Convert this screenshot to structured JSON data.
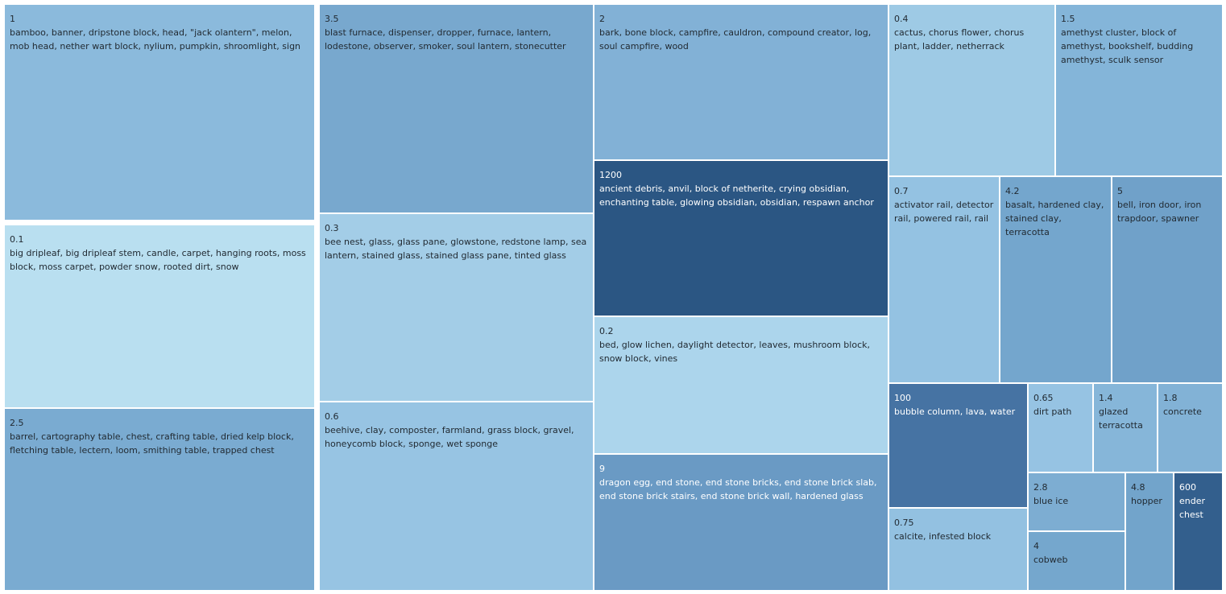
{
  "chart_data": {
    "type": "treemap",
    "title": "",
    "items": [
      {
        "value": "1",
        "label": "bamboo, banner, dripstone block, head, \"jack olantern\", melon, mob head, nether wart block, nylium, pumpkin, shroomlight, sign",
        "color": "#8bbadc"
      },
      {
        "value": "0.1",
        "label": "big dripleaf, big dripleaf stem, candle, carpet, hanging roots, moss block, moss carpet, powder snow, rooted dirt, snow",
        "color": "#b9dff0"
      },
      {
        "value": "2.5",
        "label": "barrel, cartography table, chest, crafting table, dried kelp block, fletching table, lectern, loom, smithing table, trapped chest",
        "color": "#7aabd1"
      },
      {
        "value": "3.5",
        "label": "blast furnace, dispenser, dropper, furnace, lantern, lodestone, observer, smoker, soul lantern, stonecutter",
        "color": "#78a8ce"
      },
      {
        "value": "0.3",
        "label": "bee nest, glass, glass pane, glowstone, redstone lamp, sea lantern, stained glass, stained glass pane, tinted glass",
        "color": "#a3cde7"
      },
      {
        "value": "0.6",
        "label": "beehive, clay, composter, farmland, grass block, gravel, honeycomb block, sponge, wet sponge",
        "color": "#97c4e3"
      },
      {
        "value": "2",
        "label": "bark, bone block, campfire, cauldron, compound creator, log, soul campfire, wood",
        "color": "#82b1d6"
      },
      {
        "value": "1200",
        "label": "ancient debris, anvil, block of netherite, crying obsidian, enchanting table, glowing obsidian, obsidian, respawn anchor",
        "color": "#2b5683"
      },
      {
        "value": "0.2",
        "label": "bed, glow lichen, daylight detector, leaves, mushroom block, snow block, vines",
        "color": "#acd5ec"
      },
      {
        "value": "9",
        "label": "dragon egg, end stone, end stone bricks, end stone brick slab, end stone brick stairs, end stone brick wall, hardened glass",
        "color": "#6a9ac4"
      },
      {
        "value": "0.4",
        "label": "cactus, chorus flower, chorus plant, ladder, netherrack",
        "color": "#9ecae5"
      },
      {
        "value": "1.5",
        "label": "amethyst cluster, block of amethyst, bookshelf, budding amethyst, sculk sensor",
        "color": "#84b5d9"
      },
      {
        "value": "0.7",
        "label": "activator rail, detector rail, powered rail, rail",
        "color": "#94c2e2"
      },
      {
        "value": "4.2",
        "label": "basalt, hardened clay, stained clay, terracotta",
        "color": "#74a6cd"
      },
      {
        "value": "5",
        "label": "bell, iron door, iron trapdoor, spawner",
        "color": "#70a1c9"
      },
      {
        "value": "100",
        "label": "bubble column, lava, water",
        "color": "#4673a3"
      },
      {
        "value": "0.65",
        "label": "dirt path",
        "color": "#96c3e3"
      },
      {
        "value": "1.4",
        "label": "glazed terracotta",
        "color": "#86b6d9"
      },
      {
        "value": "1.8",
        "label": "concrete",
        "color": "#82b2d6"
      },
      {
        "value": "0.75",
        "label": "calcite, infested block",
        "color": "#93c1e1"
      },
      {
        "value": "2.8",
        "label": "blue ice",
        "color": "#7dadd2"
      },
      {
        "value": "4",
        "label": "cobweb",
        "color": "#75a7cd"
      },
      {
        "value": "4.8",
        "label": "hopper",
        "color": "#72a4cb"
      },
      {
        "value": "600",
        "label": "ender chest",
        "color": "#335f8d"
      }
    ]
  }
}
